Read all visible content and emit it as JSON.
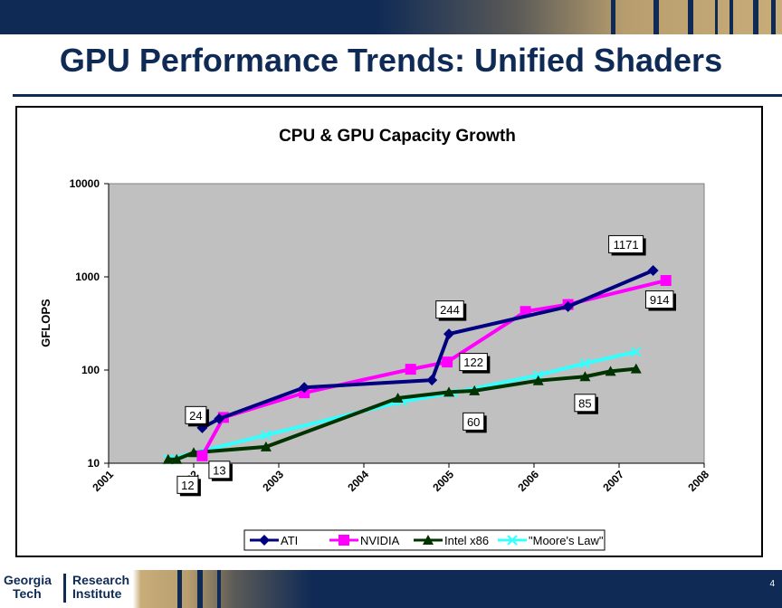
{
  "slide": {
    "title": "GPU Performance Trends: Unified Shaders",
    "page_number": "4",
    "logo": {
      "left_line1": "Georgia",
      "left_line2": "Tech",
      "right_line1": "Research",
      "right_line2": "Institute"
    }
  },
  "colors": {
    "navy": "#0e2a55",
    "gold": "#c8ad79",
    "plot_bg": "#c0c0c0",
    "ATI": "#000080",
    "NVIDIA": "#ff00ff",
    "Intel x86": "#003300",
    "Moore's Law": "#33ffff"
  },
  "chart_data": {
    "type": "line",
    "title": "CPU & GPU Capacity Growth",
    "xlabel": "",
    "ylabel": "GFLOPS",
    "xlim": [
      2001,
      2008
    ],
    "ylim": [
      10,
      10000
    ],
    "yscale": "log",
    "x_ticks": [
      "2001",
      "2002",
      "2003",
      "2004",
      "2005",
      "2006",
      "2007",
      "2008"
    ],
    "y_ticks": [
      "10",
      "100",
      "1000",
      "10000"
    ],
    "grid": false,
    "legend": "bottom",
    "series": [
      {
        "name": "ATI",
        "marker": "diamond",
        "x": [
          2002.1,
          2002.3,
          2003.3,
          2004.8,
          2005.0,
          2006.4,
          2007.4
        ],
        "y": [
          24,
          30,
          65,
          78,
          244,
          480,
          1171
        ]
      },
      {
        "name": "NVIDIA",
        "marker": "square",
        "x": [
          2002.1,
          2002.35,
          2003.3,
          2004.55,
          2004.98,
          2005.9,
          2006.4,
          2007.55
        ],
        "y": [
          12,
          31,
          57,
          102,
          122,
          425,
          505,
          914
        ]
      },
      {
        "name": "Intel x86",
        "marker": "triangle",
        "x": [
          2001.7,
          2001.8,
          2002.0,
          2002.85,
          2004.4,
          2005.0,
          2005.3,
          2006.05,
          2006.6,
          2006.9,
          2007.2
        ],
        "y": [
          11,
          11,
          13,
          15,
          50,
          58,
          60,
          77,
          85,
          97,
          103
        ]
      },
      {
        "name": "\"Moore's Law\"",
        "marker": "x",
        "x": [
          2001.7,
          2002.85,
          2004.45,
          2005.05,
          2006.05,
          2006.6,
          2007.2
        ],
        "y": [
          11,
          20,
          46,
          57,
          88,
          118,
          157
        ]
      }
    ],
    "annotations": [
      {
        "text": "24",
        "x": 2002.1,
        "y": 24
      },
      {
        "text": "12",
        "x": 2002.1,
        "y": 12
      },
      {
        "text": "13",
        "x": 2002.1,
        "y": 13
      },
      {
        "text": "244",
        "x": 2005.0,
        "y": 244
      },
      {
        "text": "122",
        "x": 2004.98,
        "y": 122
      },
      {
        "text": "60",
        "x": 2005.3,
        "y": 60
      },
      {
        "text": "85",
        "x": 2006.6,
        "y": 85
      },
      {
        "text": "1171",
        "x": 2007.4,
        "y": 1171
      },
      {
        "text": "914",
        "x": 2007.55,
        "y": 914
      }
    ]
  }
}
